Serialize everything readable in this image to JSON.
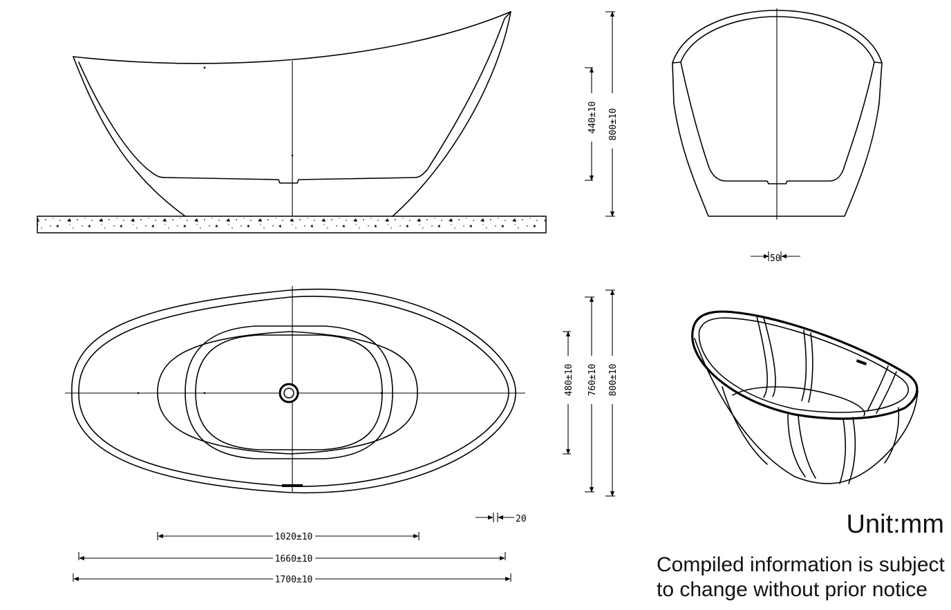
{
  "unit": "Unit:mm",
  "notice": [
    "Compiled information is subject",
    "to change without prior notice"
  ],
  "dimensions": {
    "side_inner_height": "440±10",
    "side_total_height": "800±10",
    "end_gap": "50",
    "plan_inner_width": "480±10",
    "plan_mid_width": "760±10",
    "plan_outer_width": "800±10",
    "rim_thickness": "20",
    "inner_length": "1020±10",
    "mid_length": "1660±10",
    "outer_length": "1700±10"
  }
}
